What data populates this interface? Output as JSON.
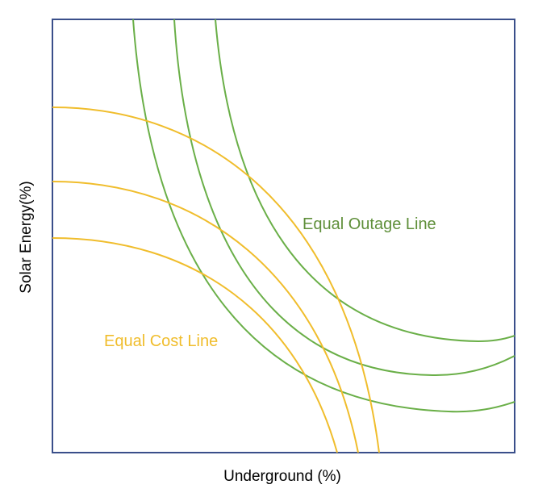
{
  "diagram": {
    "xlabel": "Underground (%)",
    "ylabel": "Solar Energy(%)",
    "annotations": {
      "outage_label": "Equal Outage Line",
      "cost_label": "Equal Cost Line"
    },
    "colors": {
      "frame": "#3a4f8a",
      "outage": "#6aaf48",
      "cost": "#f0bd2c",
      "outage_text": "#5f8f3a",
      "cost_text": "#f0bd2c"
    },
    "series": [
      {
        "group": "outage",
        "curves": 3
      },
      {
        "group": "cost",
        "curves": 3
      }
    ]
  }
}
